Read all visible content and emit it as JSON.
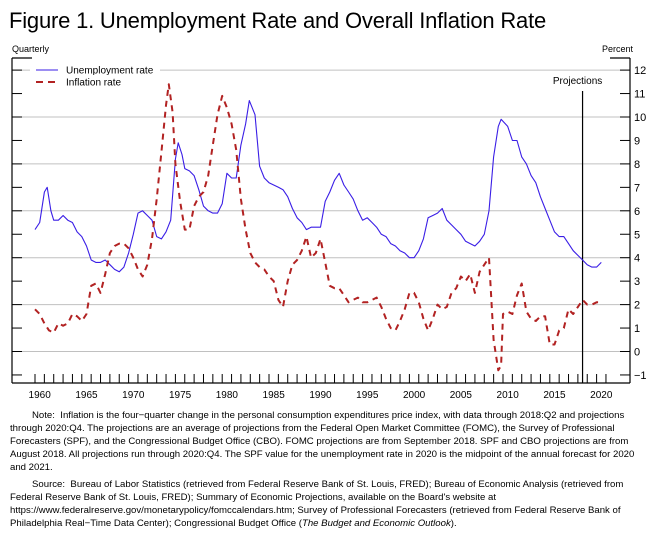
{
  "chart_data": {
    "type": "line",
    "title": "Figure 1.  Unemployment Rate and Overall Inflation Rate",
    "left_unit_label": "Quarterly",
    "right_unit_label": "Percent",
    "xlabel": "",
    "ylabel": "Percent",
    "xlim": [
      1957.5,
      2022.5
    ],
    "ylim": [
      -1.5,
      12.5
    ],
    "x_ticks": [
      1960,
      1965,
      1970,
      1975,
      1980,
      1985,
      1990,
      1995,
      2000,
      2005,
      2010,
      2015,
      2020
    ],
    "y_ticks": [
      -1,
      0,
      1,
      2,
      3,
      4,
      5,
      6,
      7,
      8,
      9,
      10,
      11,
      12
    ],
    "y_gridlines": [
      0,
      2,
      4,
      6,
      8,
      10,
      12
    ],
    "grid": true,
    "legend_position": "top-left",
    "annotation": {
      "label": "Projections",
      "x": 2018.5
    },
    "series": [
      {
        "name": "Unemployment rate",
        "style": "solid",
        "color": "#3a1ee6",
        "points": [
          [
            1960.0,
            5.2
          ],
          [
            1960.5,
            5.5
          ],
          [
            1961.0,
            6.8
          ],
          [
            1961.3,
            7.0
          ],
          [
            1961.7,
            6.0
          ],
          [
            1962.0,
            5.6
          ],
          [
            1962.5,
            5.6
          ],
          [
            1963.0,
            5.8
          ],
          [
            1963.5,
            5.6
          ],
          [
            1964.0,
            5.5
          ],
          [
            1964.5,
            5.1
          ],
          [
            1965.0,
            4.9
          ],
          [
            1965.5,
            4.5
          ],
          [
            1966.0,
            3.9
          ],
          [
            1966.5,
            3.8
          ],
          [
            1967.0,
            3.8
          ],
          [
            1967.5,
            3.9
          ],
          [
            1968.0,
            3.7
          ],
          [
            1968.5,
            3.5
          ],
          [
            1969.0,
            3.4
          ],
          [
            1969.5,
            3.6
          ],
          [
            1970.0,
            4.2
          ],
          [
            1970.5,
            5.0
          ],
          [
            1971.0,
            5.9
          ],
          [
            1971.5,
            6.0
          ],
          [
            1972.0,
            5.8
          ],
          [
            1972.5,
            5.6
          ],
          [
            1973.0,
            4.9
          ],
          [
            1973.5,
            4.8
          ],
          [
            1974.0,
            5.1
          ],
          [
            1974.5,
            5.6
          ],
          [
            1975.0,
            8.2
          ],
          [
            1975.3,
            8.9
          ],
          [
            1975.7,
            8.4
          ],
          [
            1976.0,
            7.8
          ],
          [
            1976.5,
            7.7
          ],
          [
            1977.0,
            7.5
          ],
          [
            1977.5,
            6.9
          ],
          [
            1978.0,
            6.2
          ],
          [
            1978.5,
            6.0
          ],
          [
            1979.0,
            5.9
          ],
          [
            1979.5,
            5.9
          ],
          [
            1980.0,
            6.3
          ],
          [
            1980.5,
            7.6
          ],
          [
            1981.0,
            7.4
          ],
          [
            1981.5,
            7.4
          ],
          [
            1982.0,
            8.8
          ],
          [
            1982.5,
            9.7
          ],
          [
            1982.9,
            10.7
          ],
          [
            1983.5,
            10.1
          ],
          [
            1984.0,
            7.9
          ],
          [
            1984.5,
            7.4
          ],
          [
            1985.0,
            7.2
          ],
          [
            1985.5,
            7.1
          ],
          [
            1986.0,
            7.0
          ],
          [
            1986.5,
            6.9
          ],
          [
            1987.0,
            6.6
          ],
          [
            1987.5,
            6.1
          ],
          [
            1988.0,
            5.7
          ],
          [
            1988.5,
            5.5
          ],
          [
            1989.0,
            5.2
          ],
          [
            1989.5,
            5.3
          ],
          [
            1990.0,
            5.3
          ],
          [
            1990.5,
            5.3
          ],
          [
            1991.0,
            6.4
          ],
          [
            1991.5,
            6.8
          ],
          [
            1992.0,
            7.3
          ],
          [
            1992.5,
            7.6
          ],
          [
            1993.0,
            7.1
          ],
          [
            1993.5,
            6.8
          ],
          [
            1994.0,
            6.5
          ],
          [
            1994.5,
            6.0
          ],
          [
            1995.0,
            5.6
          ],
          [
            1995.5,
            5.7
          ],
          [
            1996.0,
            5.5
          ],
          [
            1996.5,
            5.3
          ],
          [
            1997.0,
            5.0
          ],
          [
            1997.5,
            4.9
          ],
          [
            1998.0,
            4.6
          ],
          [
            1998.5,
            4.5
          ],
          [
            1999.0,
            4.3
          ],
          [
            1999.5,
            4.2
          ],
          [
            2000.0,
            4.0
          ],
          [
            2000.5,
            4.0
          ],
          [
            2001.0,
            4.3
          ],
          [
            2001.5,
            4.8
          ],
          [
            2002.0,
            5.7
          ],
          [
            2002.5,
            5.8
          ],
          [
            2003.0,
            5.9
          ],
          [
            2003.5,
            6.1
          ],
          [
            2004.0,
            5.6
          ],
          [
            2004.5,
            5.4
          ],
          [
            2005.0,
            5.2
          ],
          [
            2005.5,
            5.0
          ],
          [
            2006.0,
            4.7
          ],
          [
            2006.5,
            4.6
          ],
          [
            2007.0,
            4.5
          ],
          [
            2007.5,
            4.7
          ],
          [
            2008.0,
            5.0
          ],
          [
            2008.5,
            6.0
          ],
          [
            2009.0,
            8.3
          ],
          [
            2009.5,
            9.6
          ],
          [
            2009.8,
            9.9
          ],
          [
            2010.5,
            9.6
          ],
          [
            2011.0,
            9.0
          ],
          [
            2011.5,
            9.0
          ],
          [
            2012.0,
            8.3
          ],
          [
            2012.5,
            8.0
          ],
          [
            2013.0,
            7.5
          ],
          [
            2013.5,
            7.2
          ],
          [
            2014.0,
            6.6
          ],
          [
            2014.5,
            6.1
          ],
          [
            2015.0,
            5.6
          ],
          [
            2015.5,
            5.1
          ],
          [
            2016.0,
            4.9
          ],
          [
            2016.5,
            4.9
          ],
          [
            2017.0,
            4.6
          ],
          [
            2017.5,
            4.3
          ],
          [
            2018.0,
            4.1
          ],
          [
            2018.5,
            3.9
          ],
          [
            2019.0,
            3.7
          ],
          [
            2019.5,
            3.6
          ],
          [
            2020.0,
            3.6
          ],
          [
            2020.5,
            3.8
          ]
        ]
      },
      {
        "name": "Inflation rate",
        "style": "dashed",
        "color": "#b22222",
        "points": [
          [
            1960.0,
            1.8
          ],
          [
            1960.5,
            1.6
          ],
          [
            1961.0,
            1.2
          ],
          [
            1961.5,
            0.9
          ],
          [
            1962.0,
            0.8
          ],
          [
            1962.5,
            1.2
          ],
          [
            1963.0,
            1.1
          ],
          [
            1963.5,
            1.2
          ],
          [
            1964.0,
            1.6
          ],
          [
            1964.5,
            1.5
          ],
          [
            1965.0,
            1.3
          ],
          [
            1965.5,
            1.6
          ],
          [
            1966.0,
            2.8
          ],
          [
            1966.5,
            2.9
          ],
          [
            1967.0,
            2.5
          ],
          [
            1967.5,
            3.3
          ],
          [
            1968.0,
            4.2
          ],
          [
            1968.5,
            4.5
          ],
          [
            1969.0,
            4.6
          ],
          [
            1969.5,
            4.6
          ],
          [
            1970.0,
            4.4
          ],
          [
            1970.5,
            4.0
          ],
          [
            1971.0,
            3.5
          ],
          [
            1971.5,
            3.2
          ],
          [
            1972.0,
            3.7
          ],
          [
            1972.5,
            4.8
          ],
          [
            1973.0,
            6.5
          ],
          [
            1973.5,
            8.5
          ],
          [
            1974.0,
            10.5
          ],
          [
            1974.3,
            11.4
          ],
          [
            1974.7,
            10.2
          ],
          [
            1975.0,
            8.0
          ],
          [
            1975.5,
            6.4
          ],
          [
            1976.0,
            5.2
          ],
          [
            1976.5,
            5.2
          ],
          [
            1977.0,
            6.2
          ],
          [
            1977.5,
            6.6
          ],
          [
            1978.0,
            6.8
          ],
          [
            1978.5,
            7.5
          ],
          [
            1979.0,
            8.8
          ],
          [
            1979.5,
            10.1
          ],
          [
            1980.0,
            10.9
          ],
          [
            1980.5,
            10.4
          ],
          [
            1981.0,
            9.7
          ],
          [
            1981.5,
            8.6
          ],
          [
            1982.0,
            6.5
          ],
          [
            1982.5,
            5.2
          ],
          [
            1983.0,
            4.2
          ],
          [
            1983.5,
            3.8
          ],
          [
            1984.0,
            3.6
          ],
          [
            1984.5,
            3.5
          ],
          [
            1985.0,
            3.2
          ],
          [
            1985.5,
            3.0
          ],
          [
            1986.0,
            2.2
          ],
          [
            1986.5,
            1.9
          ],
          [
            1987.0,
            3.0
          ],
          [
            1987.5,
            3.7
          ],
          [
            1988.0,
            3.9
          ],
          [
            1988.5,
            4.3
          ],
          [
            1989.0,
            4.9
          ],
          [
            1989.5,
            4.0
          ],
          [
            1990.0,
            4.2
          ],
          [
            1990.5,
            4.8
          ],
          [
            1991.0,
            3.8
          ],
          [
            1991.5,
            2.8
          ],
          [
            1992.0,
            2.7
          ],
          [
            1992.5,
            2.7
          ],
          [
            1993.0,
            2.4
          ],
          [
            1993.5,
            2.1
          ],
          [
            1994.0,
            2.2
          ],
          [
            1994.5,
            2.3
          ],
          [
            1995.0,
            2.1
          ],
          [
            1995.5,
            2.1
          ],
          [
            1996.0,
            2.2
          ],
          [
            1996.5,
            2.3
          ],
          [
            1997.0,
            1.9
          ],
          [
            1997.5,
            1.4
          ],
          [
            1998.0,
            1.0
          ],
          [
            1998.5,
            0.9
          ],
          [
            1999.0,
            1.3
          ],
          [
            1999.5,
            1.8
          ],
          [
            2000.0,
            2.5
          ],
          [
            2000.5,
            2.5
          ],
          [
            2001.0,
            2.1
          ],
          [
            2001.5,
            1.4
          ],
          [
            2002.0,
            0.9
          ],
          [
            2002.5,
            1.4
          ],
          [
            2003.0,
            2.0
          ],
          [
            2003.5,
            1.8
          ],
          [
            2004.0,
            1.9
          ],
          [
            2004.5,
            2.5
          ],
          [
            2005.0,
            2.7
          ],
          [
            2005.5,
            3.2
          ],
          [
            2006.0,
            3.0
          ],
          [
            2006.5,
            3.3
          ],
          [
            2007.0,
            2.5
          ],
          [
            2007.5,
            3.4
          ],
          [
            2008.0,
            3.7
          ],
          [
            2008.5,
            4.0
          ],
          [
            2009.0,
            0.5
          ],
          [
            2009.5,
            -0.8
          ],
          [
            2009.8,
            -0.6
          ],
          [
            2010.0,
            1.6
          ],
          [
            2010.5,
            1.7
          ],
          [
            2011.0,
            1.6
          ],
          [
            2011.5,
            2.4
          ],
          [
            2012.0,
            2.9
          ],
          [
            2012.5,
            1.7
          ],
          [
            2013.0,
            1.4
          ],
          [
            2013.5,
            1.3
          ],
          [
            2014.0,
            1.5
          ],
          [
            2014.5,
            1.5
          ],
          [
            2015.0,
            0.3
          ],
          [
            2015.5,
            0.3
          ],
          [
            2016.0,
            0.9
          ],
          [
            2016.5,
            1.0
          ],
          [
            2017.0,
            1.8
          ],
          [
            2017.5,
            1.6
          ],
          [
            2018.0,
            1.9
          ],
          [
            2018.5,
            2.2
          ],
          [
            2019.0,
            2.0
          ],
          [
            2019.5,
            2.0
          ],
          [
            2020.0,
            2.1
          ],
          [
            2020.5,
            2.1
          ]
        ]
      }
    ]
  },
  "notes": {
    "note_label": "Note:",
    "note_text": "Inflation is the four−quarter change in the personal consumption expenditures price index, with data through 2018:Q2 and projections through 2020:Q4.  The projections are an average of projections from the Federal Open Market Committee (FOMC), the Survey of Professional Forecasters (SPF), and the Congressional Budget Office (CBO).  FOMC projections are from September 2018.  SPF and CBO projections are from August 2018.  All projections run through 2020:Q4.  The SPF value for the unemployment rate in 2020 is the midpoint of the annual forecast for 2020 and 2021.",
    "source_label": "Source:",
    "source_text": "Bureau of Labor Statistics (retrieved from Federal Reserve Bank of St. Louis, FRED); Bureau of Economic Analysis (retrieved from Federal Reserve Bank of St. Louis, FRED); Summary of Economic Projections, available on the Board's website at https://www.federalreserve.gov/monetarypolicy/fomccalendars.htm; Survey of Professional Forecasters (retrieved from Federal Reserve Bank of Philadelphia Real−Time Data Center); Congressional Budget Office (",
    "source_italic": "The Budget and Economic Outlook",
    "source_end": ")."
  }
}
